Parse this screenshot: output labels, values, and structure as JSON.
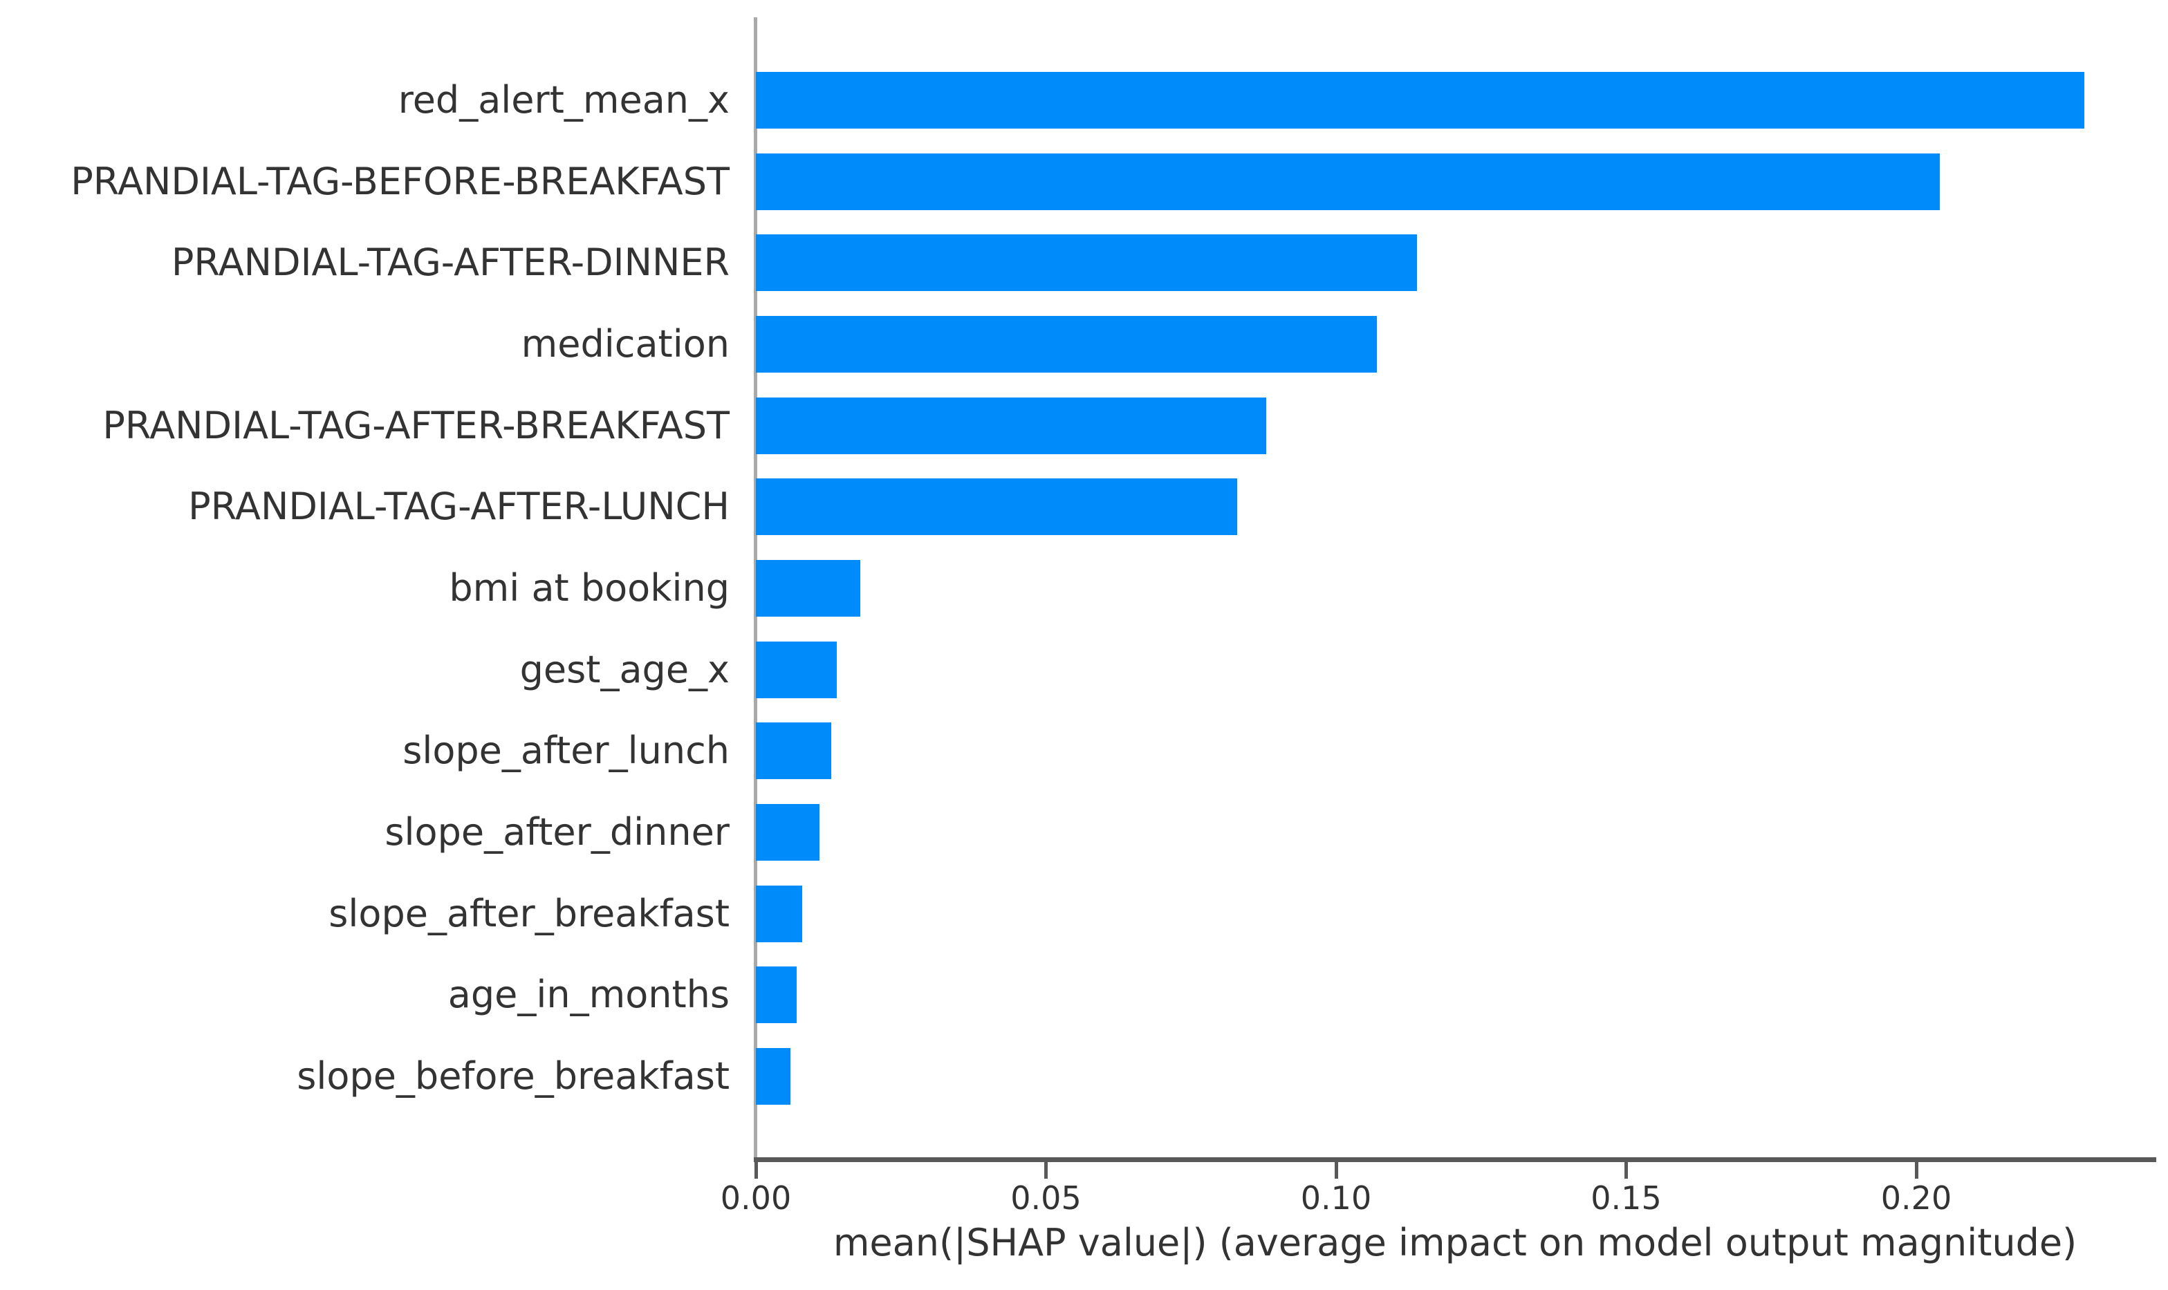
{
  "chart_data": {
    "type": "bar",
    "orientation": "horizontal",
    "xlabel": "mean(|SHAP value|) (average impact on model output magnitude)",
    "ylabel": "",
    "categories": [
      "red_alert_mean_x",
      "PRANDIAL-TAG-BEFORE-BREAKFAST",
      "PRANDIAL-TAG-AFTER-DINNER",
      "medication",
      "PRANDIAL-TAG-AFTER-BREAKFAST",
      "PRANDIAL-TAG-AFTER-LUNCH",
      "bmi at booking",
      "gest_age_x",
      "slope_after_lunch",
      "slope_after_dinner",
      "slope_after_breakfast",
      "age_in_months",
      "slope_before_breakfast"
    ],
    "values": [
      0.229,
      0.204,
      0.114,
      0.107,
      0.088,
      0.083,
      0.018,
      0.014,
      0.013,
      0.011,
      0.008,
      0.007,
      0.006
    ],
    "xticks": {
      "values": [
        0.0,
        0.05,
        0.1,
        0.15,
        0.2
      ],
      "labels": [
        "0.00",
        "0.05",
        "0.10",
        "0.15",
        "0.20"
      ]
    },
    "xlim": [
      0,
      0.241
    ],
    "grid": false,
    "legend": null,
    "bar_color": "#008bfb",
    "axis_color": "#595959",
    "spine_color": "#a9a9a9",
    "text_color": "#333333",
    "background_color": "#ffffff"
  }
}
